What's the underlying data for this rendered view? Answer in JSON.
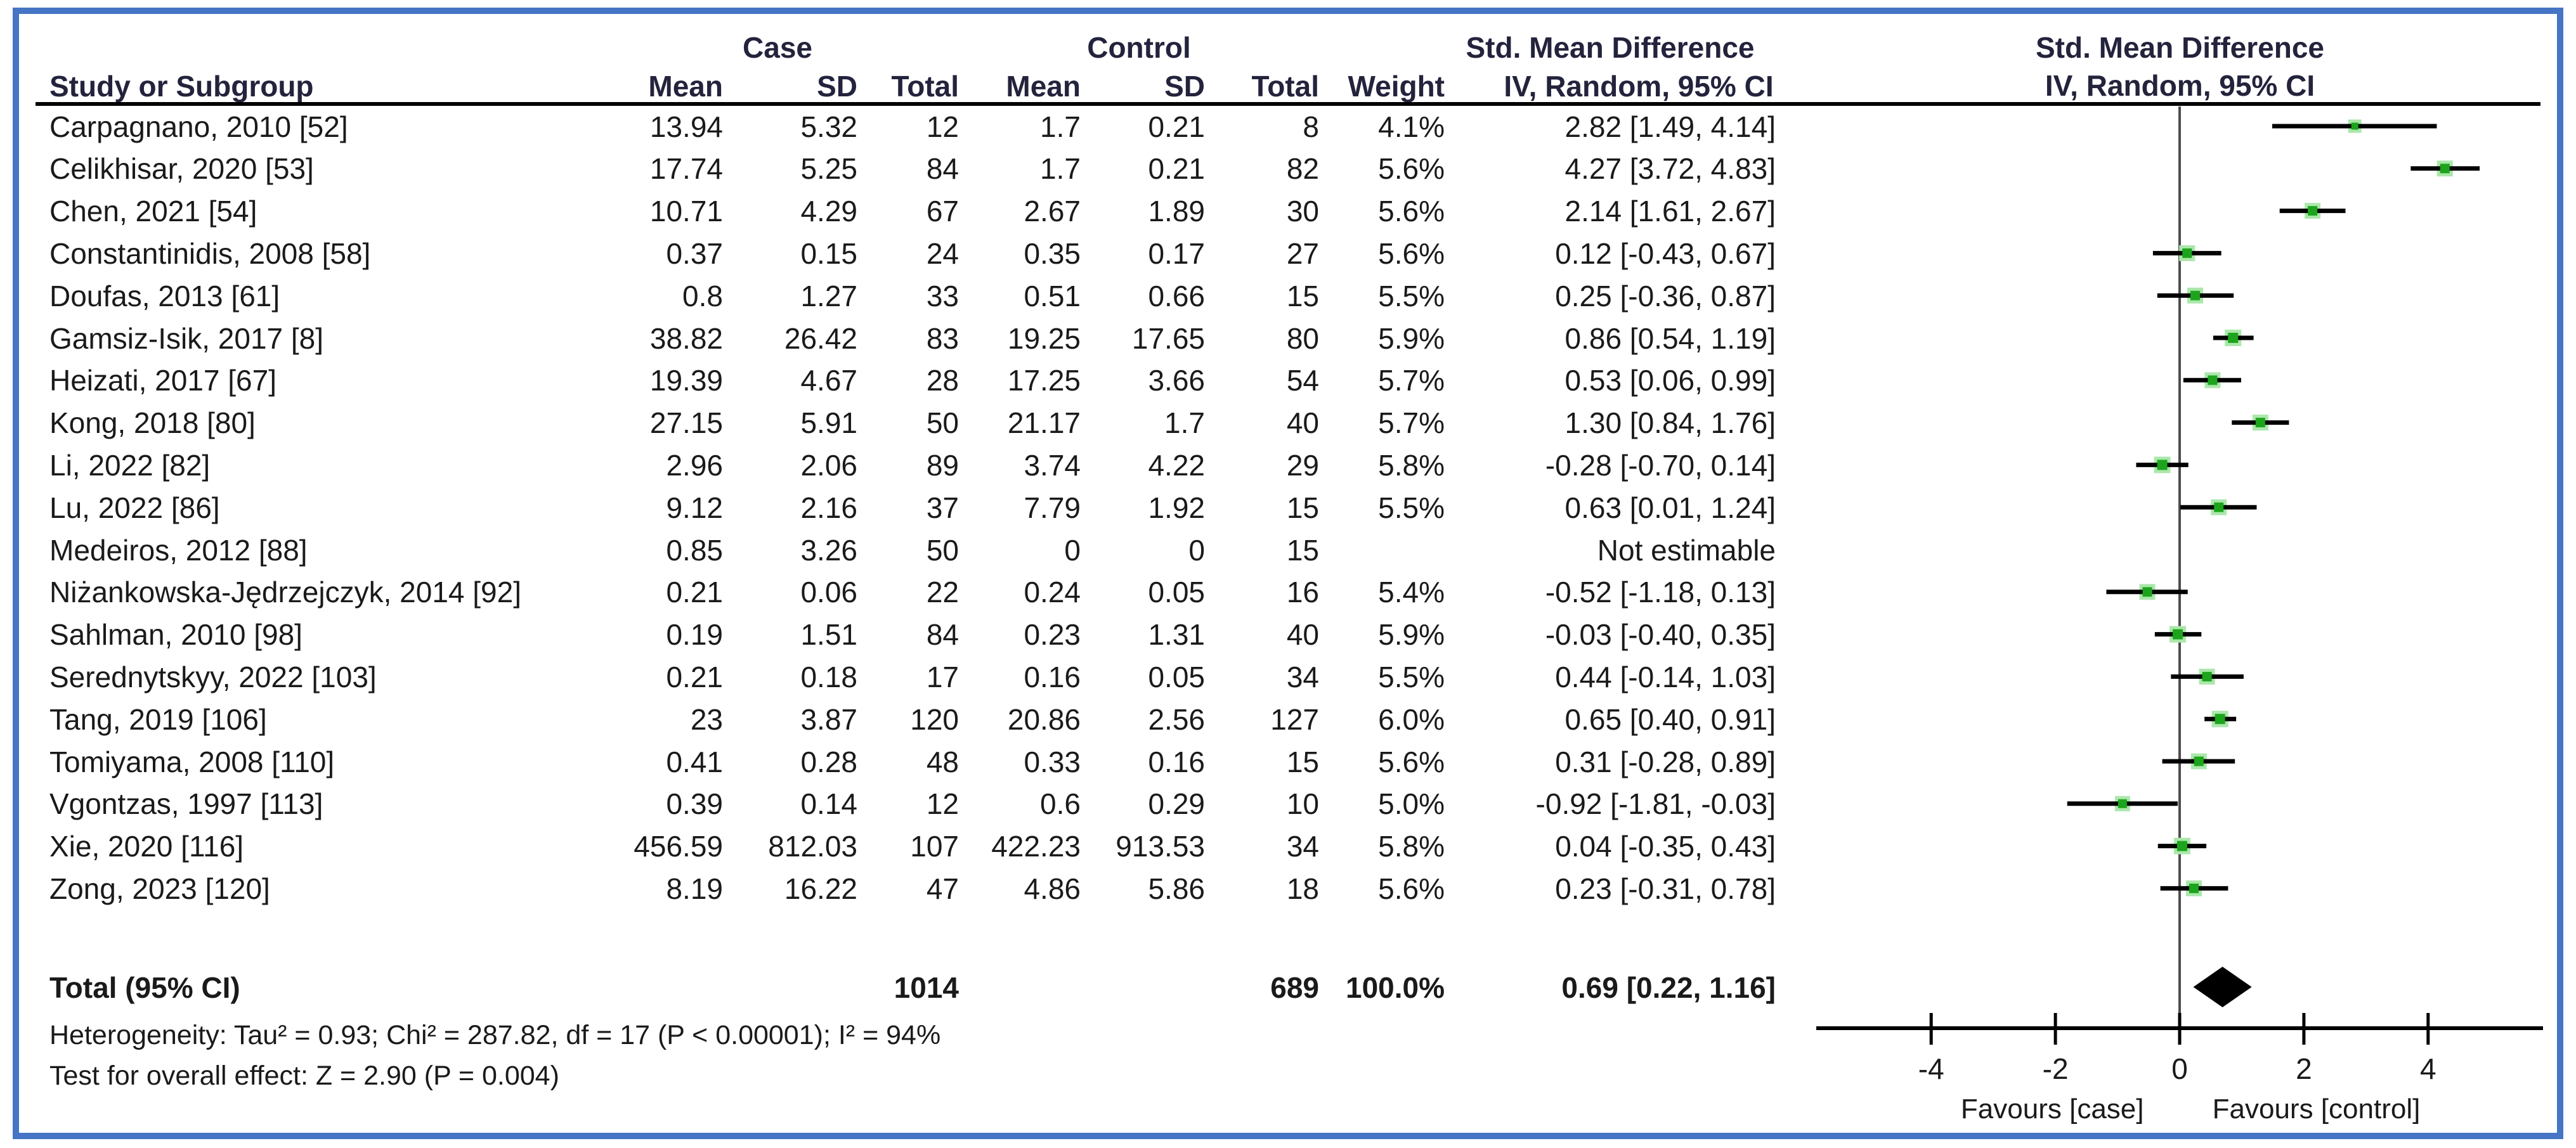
{
  "header": {
    "group_case": "Case",
    "group_control": "Control",
    "group_smd_left": "Std. Mean Difference",
    "group_smd_right": "Std. Mean Difference",
    "study": "Study or Subgroup",
    "mean": "Mean",
    "sd": "SD",
    "total": "Total",
    "weight": "Weight",
    "ci_method": "IV, Random, 95% CI",
    "ci_method_right": "IV, Random, 95% CI"
  },
  "chart_data": {
    "type": "forest",
    "effect_measure": "Std. Mean Difference",
    "model": "IV, Random, 95% CI",
    "studies": [
      {
        "name": "Carpagnano, 2010 [52]",
        "case": {
          "mean": "13.94",
          "sd": "5.32",
          "total": "12"
        },
        "control": {
          "mean": "1.7",
          "sd": "0.21",
          "total": "8"
        },
        "weight": "4.1%",
        "weight_val": 4.1,
        "smd_text": "2.82 [1.49, 4.14]",
        "est": 2.82,
        "lo": 1.49,
        "hi": 4.14,
        "estimable": true
      },
      {
        "name": "Celikhisar, 2020 [53]",
        "case": {
          "mean": "17.74",
          "sd": "5.25",
          "total": "84"
        },
        "control": {
          "mean": "1.7",
          "sd": "0.21",
          "total": "82"
        },
        "weight": "5.6%",
        "weight_val": 5.6,
        "smd_text": "4.27 [3.72, 4.83]",
        "est": 4.27,
        "lo": 3.72,
        "hi": 4.83,
        "estimable": true
      },
      {
        "name": "Chen, 2021 [54]",
        "case": {
          "mean": "10.71",
          "sd": "4.29",
          "total": "67"
        },
        "control": {
          "mean": "2.67",
          "sd": "1.89",
          "total": "30"
        },
        "weight": "5.6%",
        "weight_val": 5.6,
        "smd_text": "2.14 [1.61, 2.67]",
        "est": 2.14,
        "lo": 1.61,
        "hi": 2.67,
        "estimable": true
      },
      {
        "name": "Constantinidis, 2008 [58]",
        "case": {
          "mean": "0.37",
          "sd": "0.15",
          "total": "24"
        },
        "control": {
          "mean": "0.35",
          "sd": "0.17",
          "total": "27"
        },
        "weight": "5.6%",
        "weight_val": 5.6,
        "smd_text": "0.12 [-0.43, 0.67]",
        "est": 0.12,
        "lo": -0.43,
        "hi": 0.67,
        "estimable": true
      },
      {
        "name": "Doufas, 2013 [61]",
        "case": {
          "mean": "0.8",
          "sd": "1.27",
          "total": "33"
        },
        "control": {
          "mean": "0.51",
          "sd": "0.66",
          "total": "15"
        },
        "weight": "5.5%",
        "weight_val": 5.5,
        "smd_text": "0.25 [-0.36, 0.87]",
        "est": 0.25,
        "lo": -0.36,
        "hi": 0.87,
        "estimable": true
      },
      {
        "name": "Gamsiz-Isik, 2017 [8]",
        "case": {
          "mean": "38.82",
          "sd": "26.42",
          "total": "83"
        },
        "control": {
          "mean": "19.25",
          "sd": "17.65",
          "total": "80"
        },
        "weight": "5.9%",
        "weight_val": 5.9,
        "smd_text": "0.86 [0.54, 1.19]",
        "est": 0.86,
        "lo": 0.54,
        "hi": 1.19,
        "estimable": true
      },
      {
        "name": "Heizati, 2017 [67]",
        "case": {
          "mean": "19.39",
          "sd": "4.67",
          "total": "28"
        },
        "control": {
          "mean": "17.25",
          "sd": "3.66",
          "total": "54"
        },
        "weight": "5.7%",
        "weight_val": 5.7,
        "smd_text": "0.53 [0.06, 0.99]",
        "est": 0.53,
        "lo": 0.06,
        "hi": 0.99,
        "estimable": true
      },
      {
        "name": "Kong, 2018 [80]",
        "case": {
          "mean": "27.15",
          "sd": "5.91",
          "total": "50"
        },
        "control": {
          "mean": "21.17",
          "sd": "1.7",
          "total": "40"
        },
        "weight": "5.7%",
        "weight_val": 5.7,
        "smd_text": "1.30 [0.84, 1.76]",
        "est": 1.3,
        "lo": 0.84,
        "hi": 1.76,
        "estimable": true
      },
      {
        "name": "Li, 2022 [82]",
        "case": {
          "mean": "2.96",
          "sd": "2.06",
          "total": "89"
        },
        "control": {
          "mean": "3.74",
          "sd": "4.22",
          "total": "29"
        },
        "weight": "5.8%",
        "weight_val": 5.8,
        "smd_text": "-0.28 [-0.70, 0.14]",
        "est": -0.28,
        "lo": -0.7,
        "hi": 0.14,
        "estimable": true
      },
      {
        "name": "Lu, 2022 [86]",
        "case": {
          "mean": "9.12",
          "sd": "2.16",
          "total": "37"
        },
        "control": {
          "mean": "7.79",
          "sd": "1.92",
          "total": "15"
        },
        "weight": "5.5%",
        "weight_val": 5.5,
        "smd_text": "0.63 [0.01, 1.24]",
        "est": 0.63,
        "lo": 0.01,
        "hi": 1.24,
        "estimable": true
      },
      {
        "name": "Medeiros, 2012 [88]",
        "case": {
          "mean": "0.85",
          "sd": "3.26",
          "total": "50"
        },
        "control": {
          "mean": "0",
          "sd": "0",
          "total": "15"
        },
        "weight": "",
        "weight_val": 0,
        "smd_text": "Not estimable",
        "est": null,
        "lo": null,
        "hi": null,
        "estimable": false
      },
      {
        "name": "Niżankowska-Jędrzejczyk, 2014 [92]",
        "case": {
          "mean": "0.21",
          "sd": "0.06",
          "total": "22"
        },
        "control": {
          "mean": "0.24",
          "sd": "0.05",
          "total": "16"
        },
        "weight": "5.4%",
        "weight_val": 5.4,
        "smd_text": "-0.52 [-1.18, 0.13]",
        "est": -0.52,
        "lo": -1.18,
        "hi": 0.13,
        "estimable": true
      },
      {
        "name": "Sahlman, 2010 [98]",
        "case": {
          "mean": "0.19",
          "sd": "1.51",
          "total": "84"
        },
        "control": {
          "mean": "0.23",
          "sd": "1.31",
          "total": "40"
        },
        "weight": "5.9%",
        "weight_val": 5.9,
        "smd_text": "-0.03 [-0.40, 0.35]",
        "est": -0.03,
        "lo": -0.4,
        "hi": 0.35,
        "estimable": true
      },
      {
        "name": "Serednytskyy, 2022 [103]",
        "case": {
          "mean": "0.21",
          "sd": "0.18",
          "total": "17"
        },
        "control": {
          "mean": "0.16",
          "sd": "0.05",
          "total": "34"
        },
        "weight": "5.5%",
        "weight_val": 5.5,
        "smd_text": "0.44 [-0.14, 1.03]",
        "est": 0.44,
        "lo": -0.14,
        "hi": 1.03,
        "estimable": true
      },
      {
        "name": "Tang, 2019 [106]",
        "case": {
          "mean": "23",
          "sd": "3.87",
          "total": "120"
        },
        "control": {
          "mean": "20.86",
          "sd": "2.56",
          "total": "127"
        },
        "weight": "6.0%",
        "weight_val": 6.0,
        "smd_text": "0.65 [0.40, 0.91]",
        "est": 0.65,
        "lo": 0.4,
        "hi": 0.91,
        "estimable": true
      },
      {
        "name": "Tomiyama, 2008 [110]",
        "case": {
          "mean": "0.41",
          "sd": "0.28",
          "total": "48"
        },
        "control": {
          "mean": "0.33",
          "sd": "0.16",
          "total": "15"
        },
        "weight": "5.6%",
        "weight_val": 5.6,
        "smd_text": "0.31 [-0.28, 0.89]",
        "est": 0.31,
        "lo": -0.28,
        "hi": 0.89,
        "estimable": true
      },
      {
        "name": "Vgontzas, 1997 [113]",
        "case": {
          "mean": "0.39",
          "sd": "0.14",
          "total": "12"
        },
        "control": {
          "mean": "0.6",
          "sd": "0.29",
          "total": "10"
        },
        "weight": "5.0%",
        "weight_val": 5.0,
        "smd_text": "-0.92 [-1.81, -0.03]",
        "est": -0.92,
        "lo": -1.81,
        "hi": -0.03,
        "estimable": true
      },
      {
        "name": "Xie, 2020 [116]",
        "case": {
          "mean": "456.59",
          "sd": "812.03",
          "total": "107"
        },
        "control": {
          "mean": "422.23",
          "sd": "913.53",
          "total": "34"
        },
        "weight": "5.8%",
        "weight_val": 5.8,
        "smd_text": "0.04 [-0.35, 0.43]",
        "est": 0.04,
        "lo": -0.35,
        "hi": 0.43,
        "estimable": true
      },
      {
        "name": "Zong, 2023 [120]",
        "case": {
          "mean": "8.19",
          "sd": "16.22",
          "total": "47"
        },
        "control": {
          "mean": "4.86",
          "sd": "5.86",
          "total": "18"
        },
        "weight": "5.6%",
        "weight_val": 5.6,
        "smd_text": "0.23 [-0.31, 0.78]",
        "est": 0.23,
        "lo": -0.31,
        "hi": 0.78,
        "estimable": true
      }
    ],
    "total": {
      "label": "Total (95% CI)",
      "case_total": "1014",
      "control_total": "689",
      "weight": "100.0%",
      "smd_text": "0.69 [0.22, 1.16]",
      "est": 0.69,
      "lo": 0.22,
      "hi": 1.16
    },
    "footer": {
      "heterogeneity": "Heterogeneity: Tau² = 0.93; Chi² = 287.82, df = 17 (P < 0.00001); I² = 94%",
      "overall_effect": "Test for overall effect: Z = 2.90 (P = 0.004)"
    },
    "axis": {
      "x_min": -5.85,
      "x_max": 5.85,
      "ticks": [
        -4,
        -2,
        0,
        2,
        4
      ],
      "favours_left": "Favours [case]",
      "favours_right": "Favours [control]",
      "grid": false
    }
  },
  "colors": {
    "frame_border": "#4575c4",
    "marker": "#1da41d",
    "marker_halo": "#abe7ab",
    "ci_line": "#000000",
    "diamond": "#000000",
    "axis": "#000000",
    "zero_line": "#4d4d4d",
    "text": "#1a1a1a",
    "header_text": "#23233d"
  }
}
